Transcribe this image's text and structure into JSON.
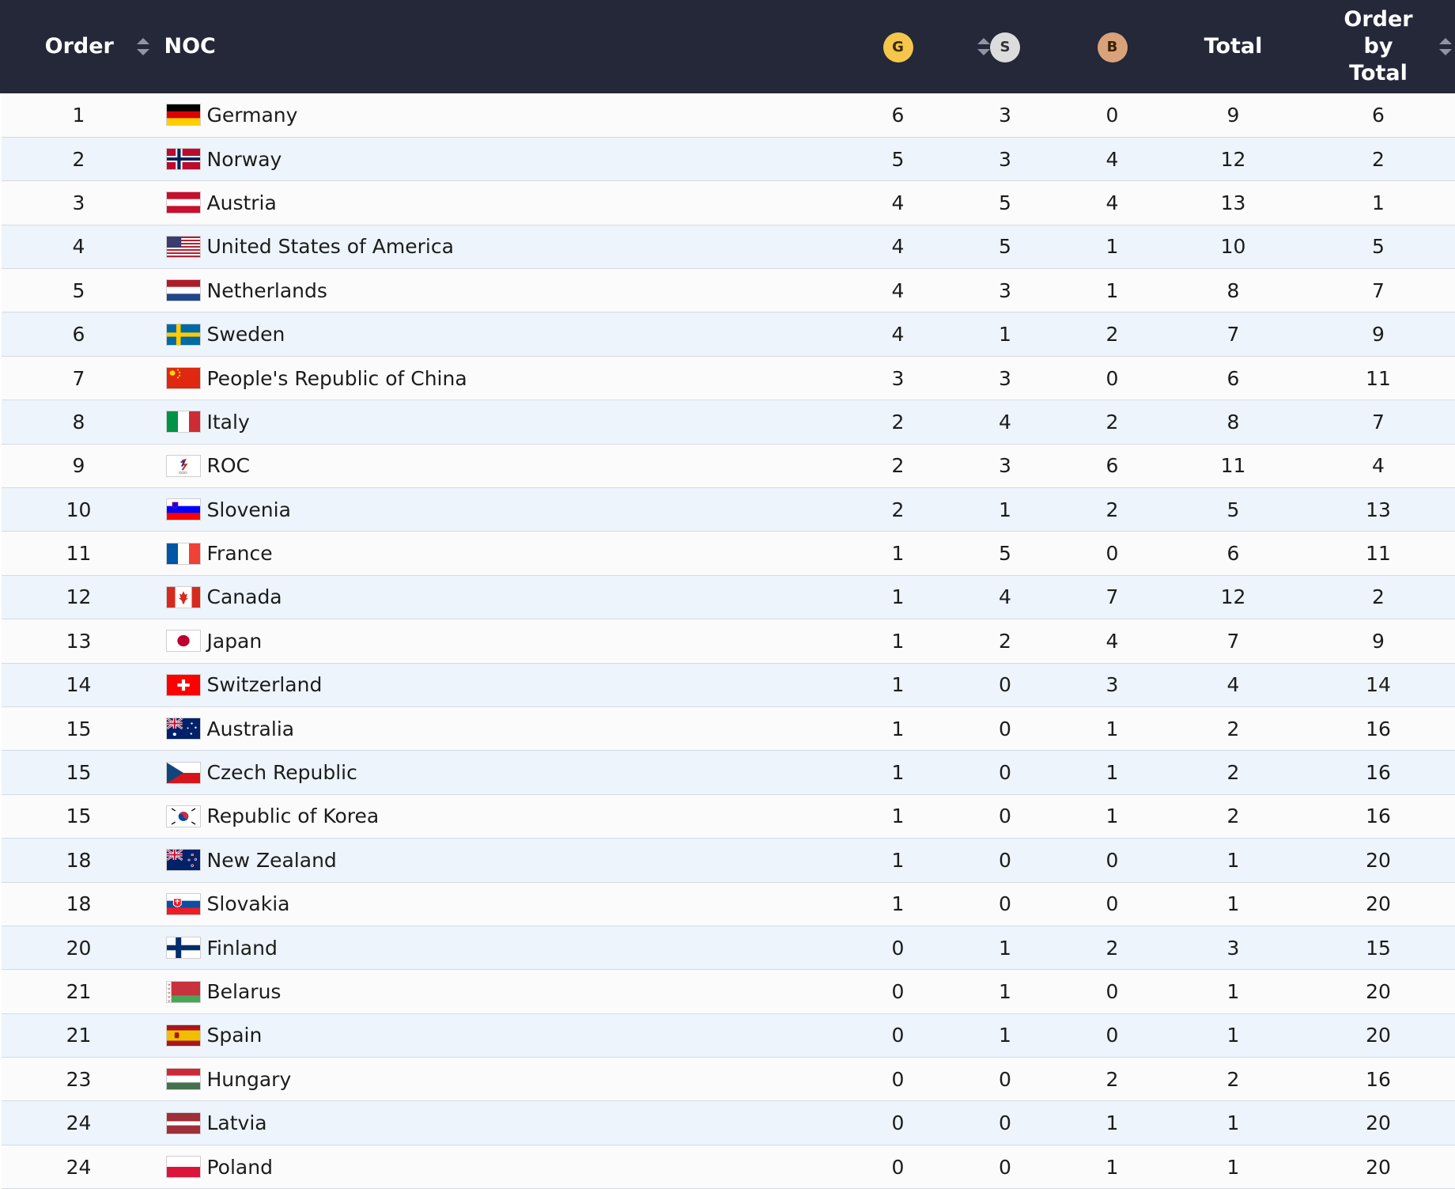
{
  "header": {
    "order": "Order",
    "noc": "NOC",
    "gold": "G",
    "silver": "S",
    "bronze": "B",
    "total": "Total",
    "order_by_total_line1": "Order",
    "order_by_total_line2": "by",
    "order_by_total_line3": "Total"
  },
  "colors": {
    "header_bg": "#242838",
    "gold": "#f5c64b",
    "silver": "#dcdcdc",
    "bronze": "#d9a27a",
    "row_alt": "#edf4fb"
  },
  "rows": [
    {
      "order": "1",
      "noc": "Germany",
      "flag": "germany",
      "g": "6",
      "s": "3",
      "b": "0",
      "total": "9",
      "order_by_total": "6"
    },
    {
      "order": "2",
      "noc": "Norway",
      "flag": "norway",
      "g": "5",
      "s": "3",
      "b": "4",
      "total": "12",
      "order_by_total": "2"
    },
    {
      "order": "3",
      "noc": "Austria",
      "flag": "austria",
      "g": "4",
      "s": "5",
      "b": "4",
      "total": "13",
      "order_by_total": "1"
    },
    {
      "order": "4",
      "noc": "United States of America",
      "flag": "usa",
      "g": "4",
      "s": "5",
      "b": "1",
      "total": "10",
      "order_by_total": "5"
    },
    {
      "order": "5",
      "noc": "Netherlands",
      "flag": "netherlands",
      "g": "4",
      "s": "3",
      "b": "1",
      "total": "8",
      "order_by_total": "7"
    },
    {
      "order": "6",
      "noc": "Sweden",
      "flag": "sweden",
      "g": "4",
      "s": "1",
      "b": "2",
      "total": "7",
      "order_by_total": "9"
    },
    {
      "order": "7",
      "noc": "People's Republic of China",
      "flag": "china",
      "g": "3",
      "s": "3",
      "b": "0",
      "total": "6",
      "order_by_total": "11"
    },
    {
      "order": "8",
      "noc": "Italy",
      "flag": "italy",
      "g": "2",
      "s": "4",
      "b": "2",
      "total": "8",
      "order_by_total": "7"
    },
    {
      "order": "9",
      "noc": "ROC",
      "flag": "roc",
      "g": "2",
      "s": "3",
      "b": "6",
      "total": "11",
      "order_by_total": "4"
    },
    {
      "order": "10",
      "noc": "Slovenia",
      "flag": "slovenia",
      "g": "2",
      "s": "1",
      "b": "2",
      "total": "5",
      "order_by_total": "13"
    },
    {
      "order": "11",
      "noc": "France",
      "flag": "france",
      "g": "1",
      "s": "5",
      "b": "0",
      "total": "6",
      "order_by_total": "11"
    },
    {
      "order": "12",
      "noc": "Canada",
      "flag": "canada",
      "g": "1",
      "s": "4",
      "b": "7",
      "total": "12",
      "order_by_total": "2"
    },
    {
      "order": "13",
      "noc": "Japan",
      "flag": "japan",
      "g": "1",
      "s": "2",
      "b": "4",
      "total": "7",
      "order_by_total": "9"
    },
    {
      "order": "14",
      "noc": "Switzerland",
      "flag": "switzerland",
      "g": "1",
      "s": "0",
      "b": "3",
      "total": "4",
      "order_by_total": "14"
    },
    {
      "order": "15",
      "noc": "Australia",
      "flag": "australia",
      "g": "1",
      "s": "0",
      "b": "1",
      "total": "2",
      "order_by_total": "16"
    },
    {
      "order": "15",
      "noc": "Czech Republic",
      "flag": "czech",
      "g": "1",
      "s": "0",
      "b": "1",
      "total": "2",
      "order_by_total": "16"
    },
    {
      "order": "15",
      "noc": "Republic of Korea",
      "flag": "korea",
      "g": "1",
      "s": "0",
      "b": "1",
      "total": "2",
      "order_by_total": "16"
    },
    {
      "order": "18",
      "noc": "New Zealand",
      "flag": "newzealand",
      "g": "1",
      "s": "0",
      "b": "0",
      "total": "1",
      "order_by_total": "20"
    },
    {
      "order": "18",
      "noc": "Slovakia",
      "flag": "slovakia",
      "g": "1",
      "s": "0",
      "b": "0",
      "total": "1",
      "order_by_total": "20"
    },
    {
      "order": "20",
      "noc": "Finland",
      "flag": "finland",
      "g": "0",
      "s": "1",
      "b": "2",
      "total": "3",
      "order_by_total": "15"
    },
    {
      "order": "21",
      "noc": "Belarus",
      "flag": "belarus",
      "g": "0",
      "s": "1",
      "b": "0",
      "total": "1",
      "order_by_total": "20"
    },
    {
      "order": "21",
      "noc": "Spain",
      "flag": "spain",
      "g": "0",
      "s": "1",
      "b": "0",
      "total": "1",
      "order_by_total": "20"
    },
    {
      "order": "23",
      "noc": "Hungary",
      "flag": "hungary",
      "g": "0",
      "s": "0",
      "b": "2",
      "total": "2",
      "order_by_total": "16"
    },
    {
      "order": "24",
      "noc": "Latvia",
      "flag": "latvia",
      "g": "0",
      "s": "0",
      "b": "1",
      "total": "1",
      "order_by_total": "20"
    },
    {
      "order": "24",
      "noc": "Poland",
      "flag": "poland",
      "g": "0",
      "s": "0",
      "b": "1",
      "total": "1",
      "order_by_total": "20"
    }
  ]
}
